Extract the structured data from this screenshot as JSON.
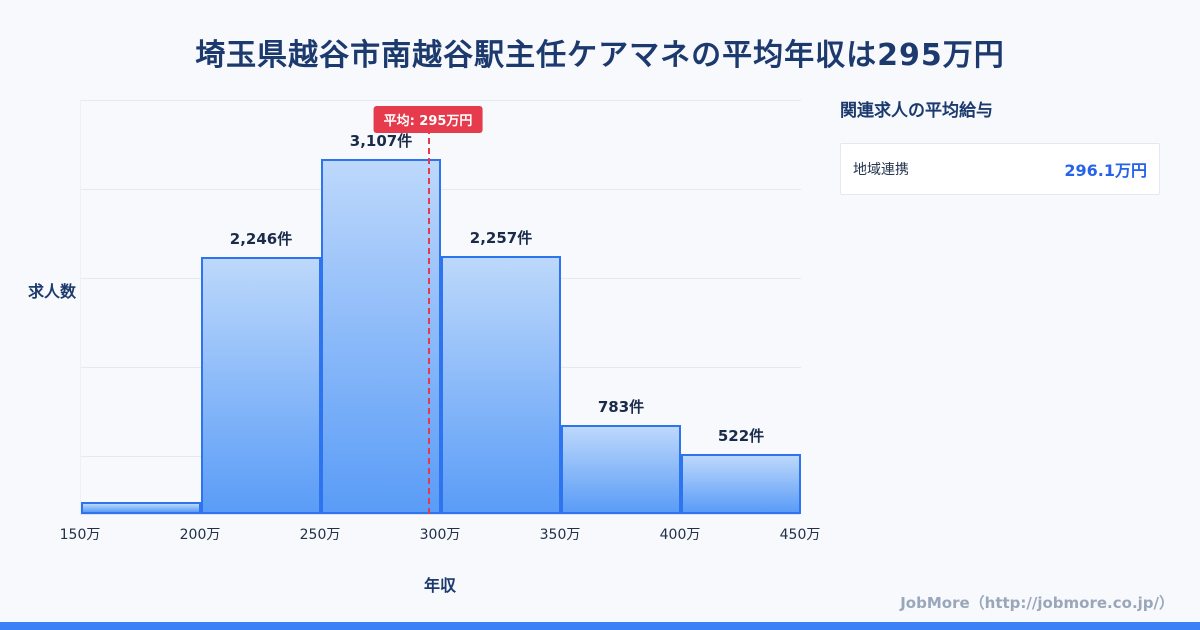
{
  "page": {
    "title": "埼玉県越谷市南越谷駅主任ケアマネの平均年収は295万円"
  },
  "chart_data": {
    "type": "bar",
    "subtype": "histogram",
    "title": "埼玉県越谷市南越谷駅主任ケアマネの平均年収は295万円",
    "xlabel": "年収",
    "ylabel": "求人数",
    "bin_edges": [
      150,
      200,
      250,
      300,
      350,
      400,
      450
    ],
    "bin_edge_labels": [
      "150万",
      "200万",
      "250万",
      "300万",
      "350万",
      "400万",
      "450万"
    ],
    "values": [
      105,
      2246,
      3107,
      2257,
      783,
      522
    ],
    "value_labels": [
      "",
      "2,246件",
      "3,107件",
      "2,257件",
      "783件",
      "522件"
    ],
    "average": {
      "value": 295,
      "label": "平均: 295万円"
    },
    "x_range": [
      150,
      450
    ],
    "y_range": [
      0,
      3650
    ],
    "grid": true,
    "legend": "none"
  },
  "side_panel": {
    "title": "関連求人の平均給与",
    "rows": [
      {
        "label": "地域連携",
        "value": "296.1万円"
      }
    ]
  },
  "footer": {
    "credit": "JobMore（http://jobmore.co.jp/）"
  },
  "colors": {
    "accent_blue": "#3c82f6",
    "bar_border": "#2e74ee",
    "bar_gradient_top": "#bdd8fb",
    "bar_gradient_bottom": "#5a9cf7",
    "average_red": "#e63b4c",
    "title_navy": "#1c3a6e",
    "value_blue": "#2563eb",
    "footer_gray": "#9aa7ba"
  }
}
